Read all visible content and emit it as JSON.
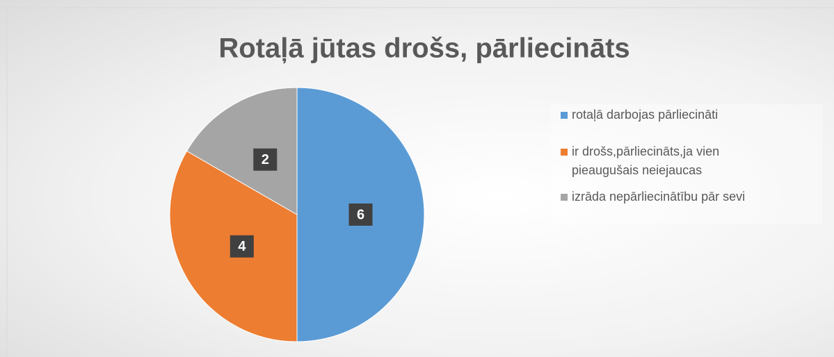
{
  "chart_data": {
    "type": "pie",
    "title": "Rotaļā jūtas drošs, pārliecināts",
    "categories": [
      "rotaļā darbojas pārliecināti",
      "ir drošs,pārliecināts,ja vien pieaugušais neiejaucas",
      "izrāda nepārliecinātību pār sevi"
    ],
    "values": [
      6,
      4,
      2
    ],
    "colors": [
      "#5b9bd5",
      "#ed7d31",
      "#a5a5a5"
    ],
    "legend": "right"
  }
}
